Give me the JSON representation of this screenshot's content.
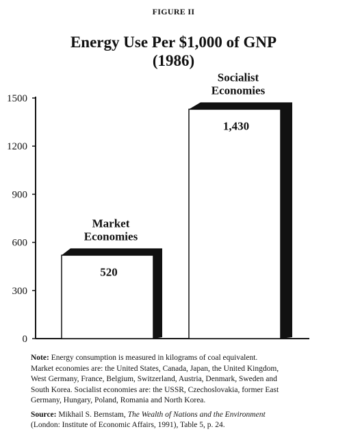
{
  "figure": {
    "label": "FIGURE II",
    "title_line1": "Energy Use Per $1,000 of GNP",
    "title_line2": "(1986)"
  },
  "chart_data": {
    "type": "bar",
    "title": "Energy Use Per $1,000 of GNP (1986)",
    "categories": [
      "Market Economies",
      "Socialist Economies"
    ],
    "category_lines": [
      [
        "Market",
        "Economies"
      ],
      [
        "Socialist",
        "Economies"
      ]
    ],
    "values": [
      520,
      1430
    ],
    "value_labels": [
      "520",
      "1,430"
    ],
    "ylim": [
      0,
      1500
    ],
    "yticks": [
      0,
      300,
      600,
      900,
      1200,
      1500
    ],
    "ytick_labels": [
      "0",
      "300",
      "600",
      "900",
      "1200",
      "1500"
    ],
    "xlabel": "",
    "ylabel": "",
    "grid": false,
    "bar_fill": "#ffffff",
    "bar_shadow": "#111111"
  },
  "note": {
    "label": "Note:",
    "lines": [
      "Energy consumption is measured in kilograms of coal equivalent.",
      "Market economies are: the United States, Canada, Japan, the United Kingdom,",
      "West Germany, France, Belgium, Switzerland, Austria, Denmark, Sweden and",
      "South Korea. Socialist economies are: the USSR, Czechoslovakia, former East",
      "Germany, Hungary, Poland, Romania and North Korea."
    ]
  },
  "source": {
    "label": "Source:",
    "author": "Mikhail S. Bernstam,",
    "work": "The Wealth of Nations and the Environment",
    "line2": "(London: Institute of Economic Affairs, 1991), Table 5, p. 24."
  }
}
